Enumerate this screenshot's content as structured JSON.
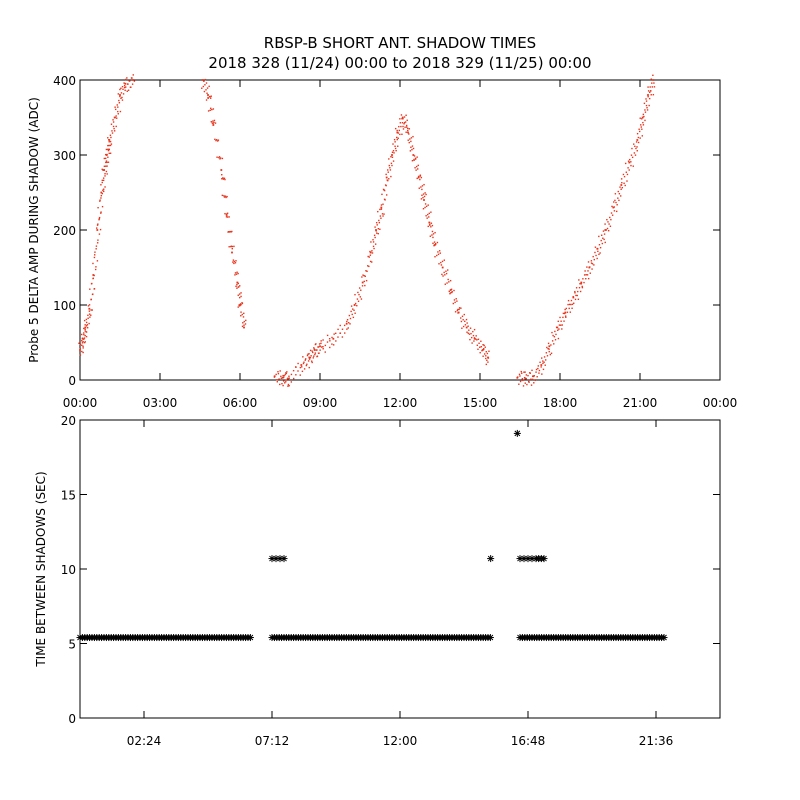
{
  "title_line1": "RBSP-B SHORT ANT. SHADOW TIMES",
  "title_line2": "2018 328 (11/24) 00:00 to 2018 329 (11/25) 00:00",
  "colors": {
    "amp_points": "#e8341c",
    "gap_points": "#000000",
    "axes": "#000000",
    "background": "#ffffff"
  },
  "chart_data": [
    {
      "type": "scatter",
      "ylabel": "Probe 5 DELTA AMP DURING SHADOW (ADC)",
      "xlabel": "",
      "x_units": "hours",
      "xlim": [
        0,
        24
      ],
      "ylim": [
        0,
        400
      ],
      "x_tick_values": [
        0,
        3,
        6,
        9,
        12,
        15,
        18,
        21,
        24
      ],
      "x_ticks": [
        "00:00",
        "03:00",
        "06:00",
        "09:00",
        "12:00",
        "15:00",
        "18:00",
        "21:00",
        "00:00"
      ],
      "y_tick_values": [
        0,
        100,
        200,
        300,
        400
      ],
      "y_ticks": [
        "0",
        "100",
        "200",
        "300",
        "400"
      ],
      "grid": false,
      "series": [
        {
          "marker": "dot",
          "color": "#e8341c",
          "points": [
            [
              0.0,
              40
            ],
            [
              0.1,
              55
            ],
            [
              0.2,
              70
            ],
            [
              0.35,
              95
            ],
            [
              0.5,
              140
            ],
            [
              0.65,
              200
            ],
            [
              0.8,
              250
            ],
            [
              0.9,
              280
            ],
            [
              1.0,
              300
            ],
            [
              1.1,
              320
            ],
            [
              1.3,
              350
            ],
            [
              1.5,
              380
            ],
            [
              1.7,
              395
            ],
            [
              2.0,
              400
            ],
            [
              4.6,
              400
            ],
            [
              4.8,
              380
            ],
            [
              5.0,
              340
            ],
            [
              5.3,
              280
            ],
            [
              5.5,
              220
            ],
            [
              5.7,
              170
            ],
            [
              5.9,
              130
            ],
            [
              6.0,
              100
            ],
            [
              6.15,
              70
            ],
            [
              7.3,
              5
            ],
            [
              7.6,
              3
            ],
            [
              7.8,
              2
            ],
            [
              8.3,
              20
            ],
            [
              8.6,
              30
            ],
            [
              8.8,
              40
            ],
            [
              9.0,
              45
            ],
            [
              9.5,
              55
            ],
            [
              10.0,
              75
            ],
            [
              10.3,
              100
            ],
            [
              10.6,
              130
            ],
            [
              10.9,
              170
            ],
            [
              11.1,
              200
            ],
            [
              11.3,
              230
            ],
            [
              11.5,
              270
            ],
            [
              11.7,
              300
            ],
            [
              11.9,
              330
            ],
            [
              12.1,
              350
            ],
            [
              12.3,
              330
            ],
            [
              12.5,
              300
            ],
            [
              12.7,
              270
            ],
            [
              12.9,
              240
            ],
            [
              13.1,
              210
            ],
            [
              13.3,
              180
            ],
            [
              13.6,
              150
            ],
            [
              13.9,
              120
            ],
            [
              14.2,
              90
            ],
            [
              14.5,
              70
            ],
            [
              14.8,
              55
            ],
            [
              15.1,
              40
            ],
            [
              15.3,
              30
            ],
            [
              16.4,
              3
            ],
            [
              16.7,
              2
            ],
            [
              17.0,
              5
            ],
            [
              17.3,
              20
            ],
            [
              17.6,
              45
            ],
            [
              17.9,
              70
            ],
            [
              18.2,
              90
            ],
            [
              18.5,
              110
            ],
            [
              18.8,
              130
            ],
            [
              19.1,
              150
            ],
            [
              19.4,
              175
            ],
            [
              19.7,
              200
            ],
            [
              20.0,
              230
            ],
            [
              20.3,
              260
            ],
            [
              20.6,
              290
            ],
            [
              20.9,
              320
            ],
            [
              21.1,
              350
            ],
            [
              21.3,
              380
            ],
            [
              21.5,
              400
            ]
          ]
        }
      ]
    },
    {
      "type": "scatter",
      "ylabel": "TIME BETWEEN SHADOWS (SEC)",
      "xlabel": "",
      "x_units": "hours",
      "xlim": [
        0,
        24
      ],
      "ylim": [
        0,
        20
      ],
      "x_tick_values": [
        2.4,
        7.2,
        12.0,
        16.8,
        21.6
      ],
      "x_ticks": [
        "02:24",
        "07:12",
        "12:00",
        "16:48",
        "21:36"
      ],
      "y_tick_values": [
        0,
        5,
        10,
        15,
        20
      ],
      "y_ticks": [
        "0",
        "5",
        "10",
        "15",
        "20"
      ],
      "grid": false,
      "series": [
        {
          "marker": "asterisk",
          "color": "#000000",
          "baseline_segments": [
            {
              "x_range": [
                0.0,
                6.45
              ],
              "y": 5.4
            },
            {
              "x_range": [
                7.2,
                15.4
              ],
              "y": 5.4
            },
            {
              "x_range": [
                16.5,
                21.9
              ],
              "y": 5.4
            }
          ],
          "points": [
            [
              7.2,
              10.7
            ],
            [
              7.35,
              10.7
            ],
            [
              7.5,
              10.7
            ],
            [
              7.65,
              10.7
            ],
            [
              15.4,
              10.7
            ],
            [
              16.4,
              19.1
            ],
            [
              16.5,
              10.7
            ],
            [
              16.65,
              10.7
            ],
            [
              16.8,
              10.7
            ],
            [
              16.95,
              10.7
            ],
            [
              17.1,
              10.7
            ],
            [
              17.2,
              10.7
            ],
            [
              17.3,
              10.7
            ],
            [
              17.4,
              10.7
            ]
          ]
        }
      ]
    }
  ]
}
